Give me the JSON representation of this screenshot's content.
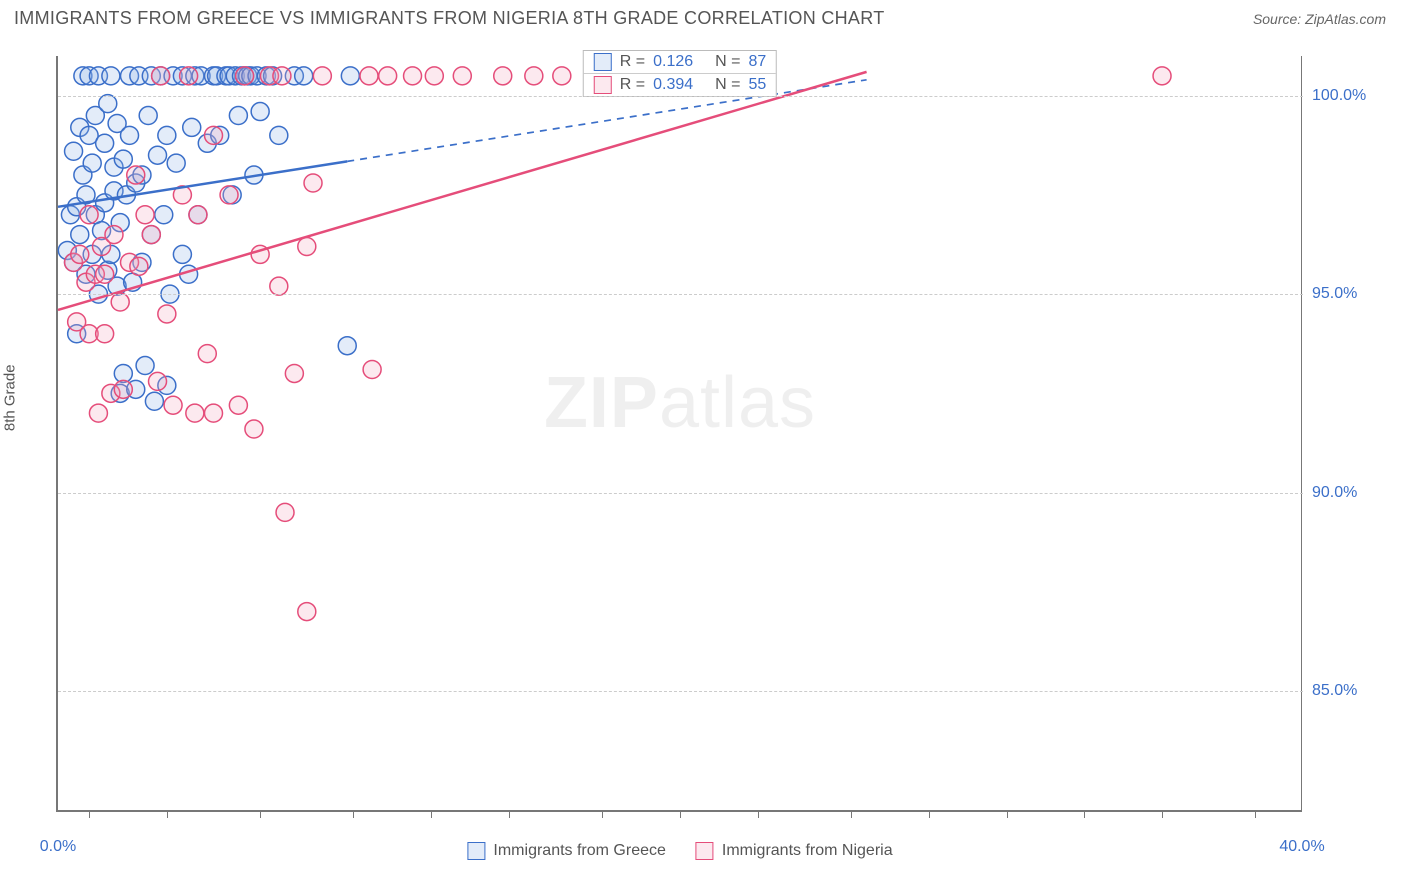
{
  "title": "IMMIGRANTS FROM GREECE VS IMMIGRANTS FROM NIGERIA 8TH GRADE CORRELATION CHART",
  "source_label": "Source:",
  "source_name": "ZipAtlas.com",
  "y_axis_label": "8th Grade",
  "watermark": "ZIPatlas",
  "chart": {
    "type": "scatter",
    "xlim": [
      0,
      40
    ],
    "ylim": [
      82,
      101
    ],
    "x_ticks": [
      0,
      40
    ],
    "x_tick_labels": [
      "0.0%",
      "40.0%"
    ],
    "x_minor_ticks": [
      1,
      3.5,
      6.5,
      9.5,
      12,
      14.5,
      17.5,
      20,
      22.5,
      25.5,
      28,
      30.5,
      33,
      35.5,
      38.5
    ],
    "y_gridlines": [
      85,
      90,
      95,
      100
    ],
    "y_tick_labels": [
      "85.0%",
      "90.0%",
      "95.0%",
      "100.0%"
    ],
    "background_color": "#ffffff",
    "grid_color": "#cccccc",
    "axis_color": "#777777",
    "tick_label_color": "#3b6fc9",
    "marker_radius": 9,
    "marker_stroke_width": 1.5,
    "marker_fill_opacity": 0.25,
    "trendline_width": 2.5
  },
  "series": [
    {
      "name": "Immigrants from Greece",
      "color_stroke": "#3b6fc9",
      "color_fill": "#8fb3e8",
      "R": "0.126",
      "N": "87",
      "trendline": {
        "x1": 0,
        "y1": 97.2,
        "x2": 26,
        "y2": 100.4,
        "dash_after_x": 9.3
      },
      "points": [
        [
          0.3,
          96.1
        ],
        [
          0.4,
          97.0
        ],
        [
          0.5,
          95.8
        ],
        [
          0.5,
          98.6
        ],
        [
          0.6,
          94.0
        ],
        [
          0.6,
          97.2
        ],
        [
          0.7,
          99.2
        ],
        [
          0.7,
          96.5
        ],
        [
          0.8,
          100.5
        ],
        [
          0.8,
          98.0
        ],
        [
          0.9,
          95.5
        ],
        [
          0.9,
          97.5
        ],
        [
          1.0,
          99.0
        ],
        [
          1.0,
          100.5
        ],
        [
          1.1,
          96.0
        ],
        [
          1.1,
          98.3
        ],
        [
          1.2,
          97.0
        ],
        [
          1.2,
          99.5
        ],
        [
          1.3,
          95.0
        ],
        [
          1.3,
          100.5
        ],
        [
          1.4,
          96.6
        ],
        [
          1.5,
          98.8
        ],
        [
          1.5,
          97.3
        ],
        [
          1.6,
          95.6
        ],
        [
          1.6,
          99.8
        ],
        [
          1.7,
          100.5
        ],
        [
          1.7,
          96.0
        ],
        [
          1.8,
          97.6
        ],
        [
          1.8,
          98.2
        ],
        [
          1.9,
          95.2
        ],
        [
          1.9,
          99.3
        ],
        [
          2.0,
          92.5
        ],
        [
          2.0,
          96.8
        ],
        [
          2.1,
          93.0
        ],
        [
          2.1,
          98.4
        ],
        [
          2.2,
          97.5
        ],
        [
          2.3,
          100.5
        ],
        [
          2.3,
          99.0
        ],
        [
          2.4,
          95.3
        ],
        [
          2.5,
          97.8
        ],
        [
          2.5,
          92.6
        ],
        [
          2.6,
          100.5
        ],
        [
          2.7,
          98.0
        ],
        [
          2.7,
          95.8
        ],
        [
          2.8,
          93.2
        ],
        [
          2.9,
          99.5
        ],
        [
          3.0,
          100.5
        ],
        [
          3.0,
          96.5
        ],
        [
          3.1,
          92.3
        ],
        [
          3.2,
          98.5
        ],
        [
          3.3,
          100.5
        ],
        [
          3.4,
          97.0
        ],
        [
          3.5,
          92.7
        ],
        [
          3.5,
          99.0
        ],
        [
          3.6,
          95.0
        ],
        [
          3.7,
          100.5
        ],
        [
          3.8,
          98.3
        ],
        [
          4.0,
          100.5
        ],
        [
          4.0,
          96.0
        ],
        [
          4.2,
          95.5
        ],
        [
          4.3,
          99.2
        ],
        [
          4.4,
          100.5
        ],
        [
          4.5,
          97.0
        ],
        [
          4.6,
          100.5
        ],
        [
          4.8,
          98.8
        ],
        [
          5.0,
          100.5
        ],
        [
          5.1,
          100.5
        ],
        [
          5.2,
          99.0
        ],
        [
          5.4,
          100.5
        ],
        [
          5.5,
          100.5
        ],
        [
          5.6,
          97.5
        ],
        [
          5.7,
          100.5
        ],
        [
          5.8,
          99.5
        ],
        [
          5.9,
          100.5
        ],
        [
          6.0,
          100.5
        ],
        [
          6.1,
          100.5
        ],
        [
          6.2,
          100.5
        ],
        [
          6.3,
          98.0
        ],
        [
          6.4,
          100.5
        ],
        [
          6.5,
          99.6
        ],
        [
          6.7,
          100.5
        ],
        [
          6.9,
          100.5
        ],
        [
          7.1,
          99.0
        ],
        [
          7.6,
          100.5
        ],
        [
          7.9,
          100.5
        ],
        [
          9.3,
          93.7
        ],
        [
          9.4,
          100.5
        ]
      ]
    },
    {
      "name": "Immigrants from Nigeria",
      "color_stroke": "#e54d7a",
      "color_fill": "#f5a6c0",
      "R": "0.394",
      "N": "55",
      "trendline": {
        "x1": 0,
        "y1": 94.6,
        "x2": 26,
        "y2": 100.6,
        "dash_after_x": 40
      },
      "points": [
        [
          0.5,
          95.8
        ],
        [
          0.6,
          94.3
        ],
        [
          0.7,
          96.0
        ],
        [
          0.9,
          95.3
        ],
        [
          1.0,
          97.0
        ],
        [
          1.0,
          94.0
        ],
        [
          1.2,
          95.5
        ],
        [
          1.3,
          92.0
        ],
        [
          1.4,
          96.2
        ],
        [
          1.5,
          94.0
        ],
        [
          1.5,
          95.5
        ],
        [
          1.7,
          92.5
        ],
        [
          1.8,
          96.5
        ],
        [
          2.0,
          94.8
        ],
        [
          2.1,
          92.6
        ],
        [
          2.3,
          95.8
        ],
        [
          2.5,
          98.0
        ],
        [
          2.6,
          95.7
        ],
        [
          2.8,
          97.0
        ],
        [
          3.0,
          96.5
        ],
        [
          3.2,
          92.8
        ],
        [
          3.3,
          100.5
        ],
        [
          3.5,
          94.5
        ],
        [
          3.7,
          92.2
        ],
        [
          4.0,
          97.5
        ],
        [
          4.2,
          100.5
        ],
        [
          4.4,
          92.0
        ],
        [
          4.5,
          97.0
        ],
        [
          4.8,
          93.5
        ],
        [
          5.0,
          99.0
        ],
        [
          5.0,
          92.0
        ],
        [
          5.5,
          97.5
        ],
        [
          5.8,
          92.2
        ],
        [
          6.0,
          100.5
        ],
        [
          6.3,
          91.6
        ],
        [
          6.5,
          96.0
        ],
        [
          6.8,
          100.5
        ],
        [
          7.1,
          95.2
        ],
        [
          7.2,
          100.5
        ],
        [
          7.3,
          89.5
        ],
        [
          7.6,
          93.0
        ],
        [
          8.0,
          96.2
        ],
        [
          8.0,
          87.0
        ],
        [
          8.2,
          97.8
        ],
        [
          8.5,
          100.5
        ],
        [
          10.0,
          100.5
        ],
        [
          10.1,
          93.1
        ],
        [
          10.6,
          100.5
        ],
        [
          11.4,
          100.5
        ],
        [
          12.1,
          100.5
        ],
        [
          13.0,
          100.5
        ],
        [
          14.3,
          100.5
        ],
        [
          15.3,
          100.5
        ],
        [
          16.2,
          100.5
        ],
        [
          35.5,
          100.5
        ]
      ]
    }
  ],
  "legend_top": {
    "r_label": "R =",
    "n_label": "N ="
  },
  "legend_bottom": [
    {
      "label": "Immigrants from Greece",
      "series": 0
    },
    {
      "label": "Immigrants from Nigeria",
      "series": 1
    }
  ]
}
